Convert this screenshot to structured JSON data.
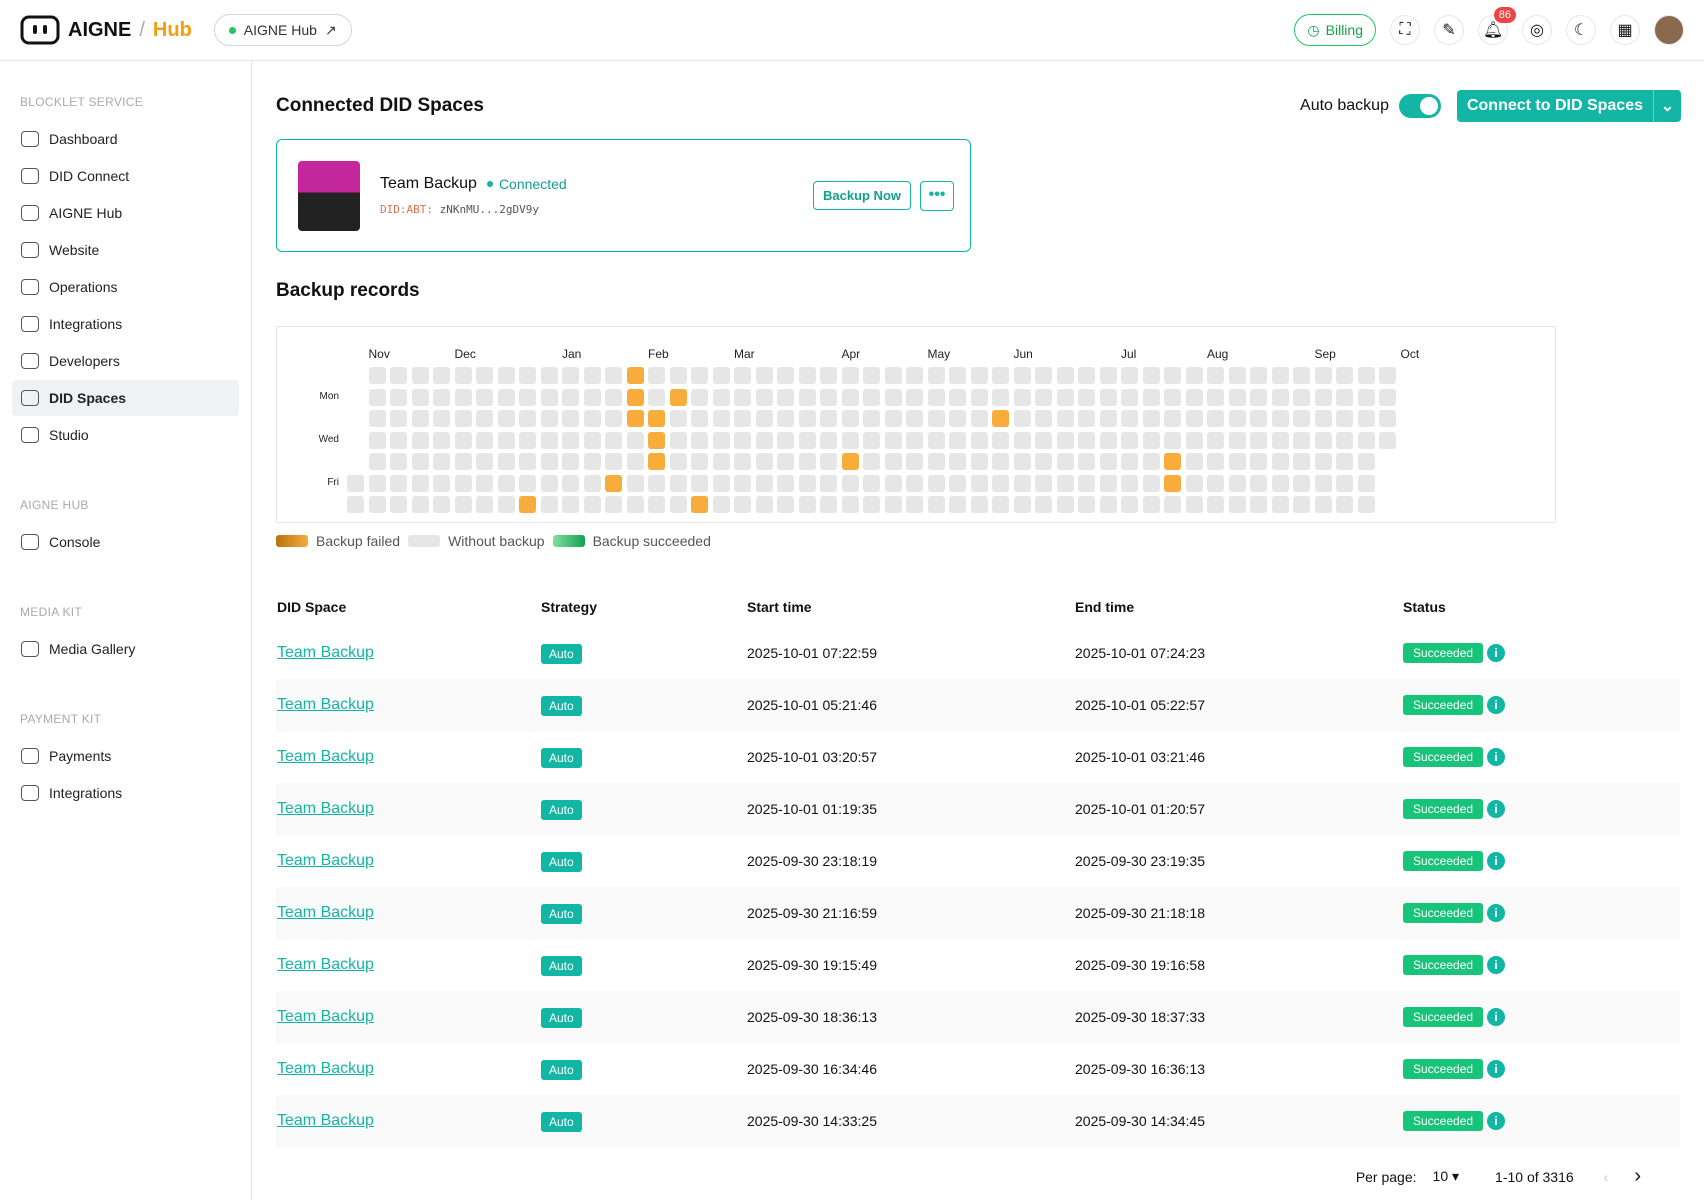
{
  "header": {
    "logo": "AIGNE",
    "separator": "/",
    "hub": "Hub",
    "app_chip": "AIGNE Hub",
    "billing": "Billing",
    "notifications": "86"
  },
  "sidebar": {
    "sections": [
      {
        "title": "BLOCKLET SERVICE",
        "items": [
          "Dashboard",
          "DID Connect",
          "AIGNE Hub",
          "Website",
          "Operations",
          "Integrations",
          "Developers",
          "DID Spaces",
          "Studio"
        ]
      },
      {
        "title": "AIGNE HUB",
        "items": [
          "Console"
        ]
      },
      {
        "title": "MEDIA KIT",
        "items": [
          "Media Gallery"
        ]
      },
      {
        "title": "PAYMENT KIT",
        "items": [
          "Payments",
          "Integrations"
        ]
      }
    ],
    "active": [
      0,
      7
    ]
  },
  "page": {
    "title": "Connected DID Spaces",
    "auto_backup": "Auto backup",
    "connect_button": "Connect to DID Spaces",
    "space_card": {
      "name": "Team Backup",
      "status": "Connected",
      "did_prefix": "DID:ABT:",
      "did": "zNKnMU...2gDV9y",
      "backup_now": "Backup Now"
    },
    "records_title": "Backup records",
    "heatmap": {
      "months": [
        {
          "label": "Nov",
          "week": 1
        },
        {
          "label": "Dec",
          "week": 5
        },
        {
          "label": "Jan",
          "week": 10
        },
        {
          "label": "Feb",
          "week": 14
        },
        {
          "label": "Mar",
          "week": 18
        },
        {
          "label": "Apr",
          "week": 23
        },
        {
          "label": "May",
          "week": 27
        },
        {
          "label": "Jun",
          "week": 31
        },
        {
          "label": "Jul",
          "week": 36
        },
        {
          "label": "Aug",
          "week": 40
        },
        {
          "label": "Sep",
          "week": 45
        },
        {
          "label": "Oct",
          "week": 49
        }
      ],
      "day_labels": [
        {
          "label": "Mon",
          "day": 1
        },
        {
          "label": "Wed",
          "day": 3
        },
        {
          "label": "Fri",
          "day": 5
        }
      ],
      "weeks": 49,
      "first_day": 5,
      "last_day": 3,
      "failed": [
        [
          13,
          0
        ],
        [
          13,
          1
        ],
        [
          15,
          1
        ],
        [
          13,
          2
        ],
        [
          14,
          2
        ],
        [
          30,
          2
        ],
        [
          14,
          3
        ],
        [
          14,
          4
        ],
        [
          23,
          4
        ],
        [
          38,
          4
        ],
        [
          12,
          5
        ],
        [
          38,
          5
        ],
        [
          8,
          6
        ],
        [
          16,
          6
        ]
      ]
    },
    "legend": [
      "Backup failed",
      "Without backup",
      "Backup succeeded"
    ],
    "table": {
      "columns": [
        "DID Space",
        "Strategy",
        "Start time",
        "End time",
        "Status"
      ],
      "rows": [
        [
          "Team Backup",
          "Auto",
          "2025-10-01 07:22:59",
          "2025-10-01 07:24:23",
          "Succeeded"
        ],
        [
          "Team Backup",
          "Auto",
          "2025-10-01 05:21:46",
          "2025-10-01 05:22:57",
          "Succeeded"
        ],
        [
          "Team Backup",
          "Auto",
          "2025-10-01 03:20:57",
          "2025-10-01 03:21:46",
          "Succeeded"
        ],
        [
          "Team Backup",
          "Auto",
          "2025-10-01 01:19:35",
          "2025-10-01 01:20:57",
          "Succeeded"
        ],
        [
          "Team Backup",
          "Auto",
          "2025-09-30 23:18:19",
          "2025-09-30 23:19:35",
          "Succeeded"
        ],
        [
          "Team Backup",
          "Auto",
          "2025-09-30 21:16:59",
          "2025-09-30 21:18:18",
          "Succeeded"
        ],
        [
          "Team Backup",
          "Auto",
          "2025-09-30 19:15:49",
          "2025-09-30 19:16:58",
          "Succeeded"
        ],
        [
          "Team Backup",
          "Auto",
          "2025-09-30 18:36:13",
          "2025-09-30 18:37:33",
          "Succeeded"
        ],
        [
          "Team Backup",
          "Auto",
          "2025-09-30 16:34:46",
          "2025-09-30 16:36:13",
          "Succeeded"
        ],
        [
          "Team Backup",
          "Auto",
          "2025-09-30 14:33:25",
          "2025-09-30 14:34:45",
          "Succeeded"
        ]
      ]
    },
    "pagination": {
      "per_page_label": "Per page:",
      "per_page": "10",
      "range": "1-10 of 3316"
    }
  }
}
